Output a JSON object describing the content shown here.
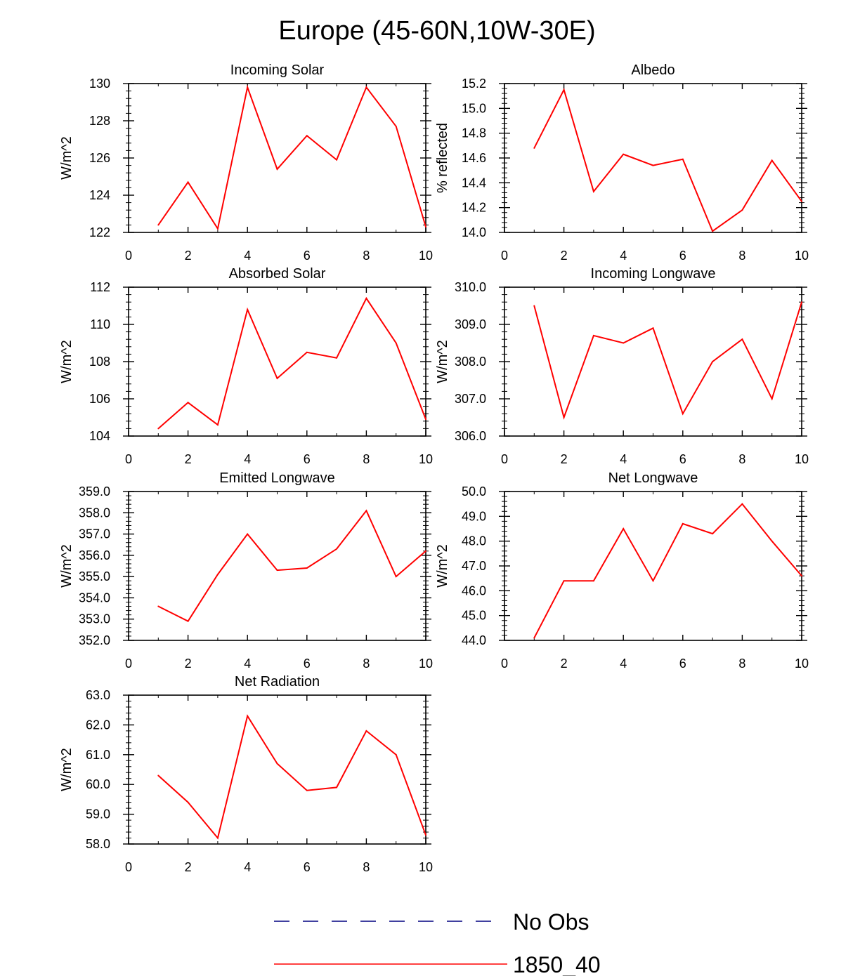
{
  "title": "Europe (45-60N,10W-30E)",
  "colors": {
    "series": "#ff0000",
    "obs": "#000080",
    "axis": "#000000"
  },
  "legend": {
    "placement": "bottom-center",
    "items": [
      {
        "label": "No Obs",
        "style": "dashed",
        "color": "#000080"
      },
      {
        "label": "1850_40",
        "style": "solid",
        "color": "#ff0000"
      }
    ]
  },
  "chart_data": [
    {
      "type": "line",
      "title": "Incoming Solar",
      "xlabel": "",
      "ylabel": "W/m^2",
      "xlim": [
        0,
        10
      ],
      "ylim": [
        122,
        130
      ],
      "xticks": [
        0,
        2,
        4,
        6,
        8,
        10
      ],
      "yticks": [
        122,
        124,
        126,
        128,
        130
      ],
      "ytick_decimals": 0,
      "grid": false,
      "series": [
        {
          "name": "1850_40",
          "x": [
            1,
            2,
            3,
            4,
            5,
            6,
            7,
            8,
            9,
            10
          ],
          "y": [
            122.4,
            124.7,
            122.2,
            129.8,
            125.4,
            127.2,
            125.9,
            129.8,
            127.7,
            122.3
          ]
        }
      ]
    },
    {
      "type": "line",
      "title": "Albedo",
      "xlabel": "",
      "ylabel": "% reflected",
      "xlim": [
        0,
        10
      ],
      "ylim": [
        14.0,
        15.2
      ],
      "xticks": [
        0,
        2,
        4,
        6,
        8,
        10
      ],
      "yticks": [
        14.0,
        14.2,
        14.4,
        14.6,
        14.8,
        15.0,
        15.2
      ],
      "ytick_decimals": 1,
      "grid": false,
      "series": [
        {
          "name": "1850_40",
          "x": [
            1,
            2,
            3,
            4,
            5,
            6,
            7,
            8,
            9,
            10
          ],
          "y": [
            14.68,
            15.15,
            14.33,
            14.63,
            14.54,
            14.59,
            14.01,
            14.18,
            14.58,
            14.25
          ]
        }
      ]
    },
    {
      "type": "line",
      "title": "Absorbed Solar",
      "xlabel": "",
      "ylabel": "W/m^2",
      "xlim": [
        0,
        10
      ],
      "ylim": [
        104,
        112
      ],
      "xticks": [
        0,
        2,
        4,
        6,
        8,
        10
      ],
      "yticks": [
        104,
        106,
        108,
        110,
        112
      ],
      "ytick_decimals": 0,
      "grid": false,
      "series": [
        {
          "name": "1850_40",
          "x": [
            1,
            2,
            3,
            4,
            5,
            6,
            7,
            8,
            9,
            10
          ],
          "y": [
            104.4,
            105.8,
            104.6,
            110.8,
            107.1,
            108.5,
            108.2,
            111.4,
            109.0,
            104.9
          ]
        }
      ]
    },
    {
      "type": "line",
      "title": "Incoming Longwave",
      "xlabel": "",
      "ylabel": "W/m^2",
      "xlim": [
        0,
        10
      ],
      "ylim": [
        306.0,
        310.0
      ],
      "xticks": [
        0,
        2,
        4,
        6,
        8,
        10
      ],
      "yticks": [
        306.0,
        307.0,
        308.0,
        309.0,
        310.0
      ],
      "ytick_decimals": 1,
      "grid": false,
      "series": [
        {
          "name": "1850_40",
          "x": [
            1,
            2,
            3,
            4,
            5,
            6,
            7,
            8,
            9,
            10
          ],
          "y": [
            309.5,
            306.5,
            308.7,
            308.5,
            308.9,
            306.6,
            308.0,
            308.6,
            307.0,
            309.6
          ]
        }
      ]
    },
    {
      "type": "line",
      "title": "Emitted Longwave",
      "xlabel": "",
      "ylabel": "W/m^2",
      "xlim": [
        0,
        10
      ],
      "ylim": [
        352.0,
        359.0
      ],
      "xticks": [
        0,
        2,
        4,
        6,
        8,
        10
      ],
      "yticks": [
        352.0,
        353.0,
        354.0,
        355.0,
        356.0,
        357.0,
        358.0,
        359.0
      ],
      "ytick_decimals": 1,
      "grid": false,
      "series": [
        {
          "name": "1850_40",
          "x": [
            1,
            2,
            3,
            4,
            5,
            6,
            7,
            8,
            9,
            10
          ],
          "y": [
            353.6,
            352.9,
            355.1,
            357.0,
            355.3,
            355.4,
            356.3,
            358.1,
            355.0,
            356.2
          ]
        }
      ]
    },
    {
      "type": "line",
      "title": "Net Longwave",
      "xlabel": "",
      "ylabel": "W/m^2",
      "xlim": [
        0,
        10
      ],
      "ylim": [
        44.0,
        50.0
      ],
      "xticks": [
        0,
        2,
        4,
        6,
        8,
        10
      ],
      "yticks": [
        44.0,
        45.0,
        46.0,
        47.0,
        48.0,
        49.0,
        50.0
      ],
      "ytick_decimals": 1,
      "grid": false,
      "series": [
        {
          "name": "1850_40",
          "x": [
            1,
            2,
            3,
            4,
            5,
            6,
            7,
            8,
            9,
            10
          ],
          "y": [
            44.1,
            46.4,
            46.4,
            48.5,
            46.4,
            48.7,
            48.3,
            49.5,
            48.0,
            46.6
          ]
        }
      ]
    },
    {
      "type": "line",
      "title": "Net Radiation",
      "xlabel": "",
      "ylabel": "W/m^2",
      "xlim": [
        0,
        10
      ],
      "ylim": [
        58.0,
        63.0
      ],
      "xticks": [
        0,
        2,
        4,
        6,
        8,
        10
      ],
      "yticks": [
        58.0,
        59.0,
        60.0,
        61.0,
        62.0,
        63.0
      ],
      "ytick_decimals": 1,
      "grid": false,
      "series": [
        {
          "name": "1850_40",
          "x": [
            1,
            2,
            3,
            4,
            5,
            6,
            7,
            8,
            9,
            10
          ],
          "y": [
            60.3,
            59.4,
            58.2,
            62.3,
            60.7,
            59.8,
            59.9,
            61.8,
            61.0,
            58.3
          ]
        }
      ]
    }
  ]
}
